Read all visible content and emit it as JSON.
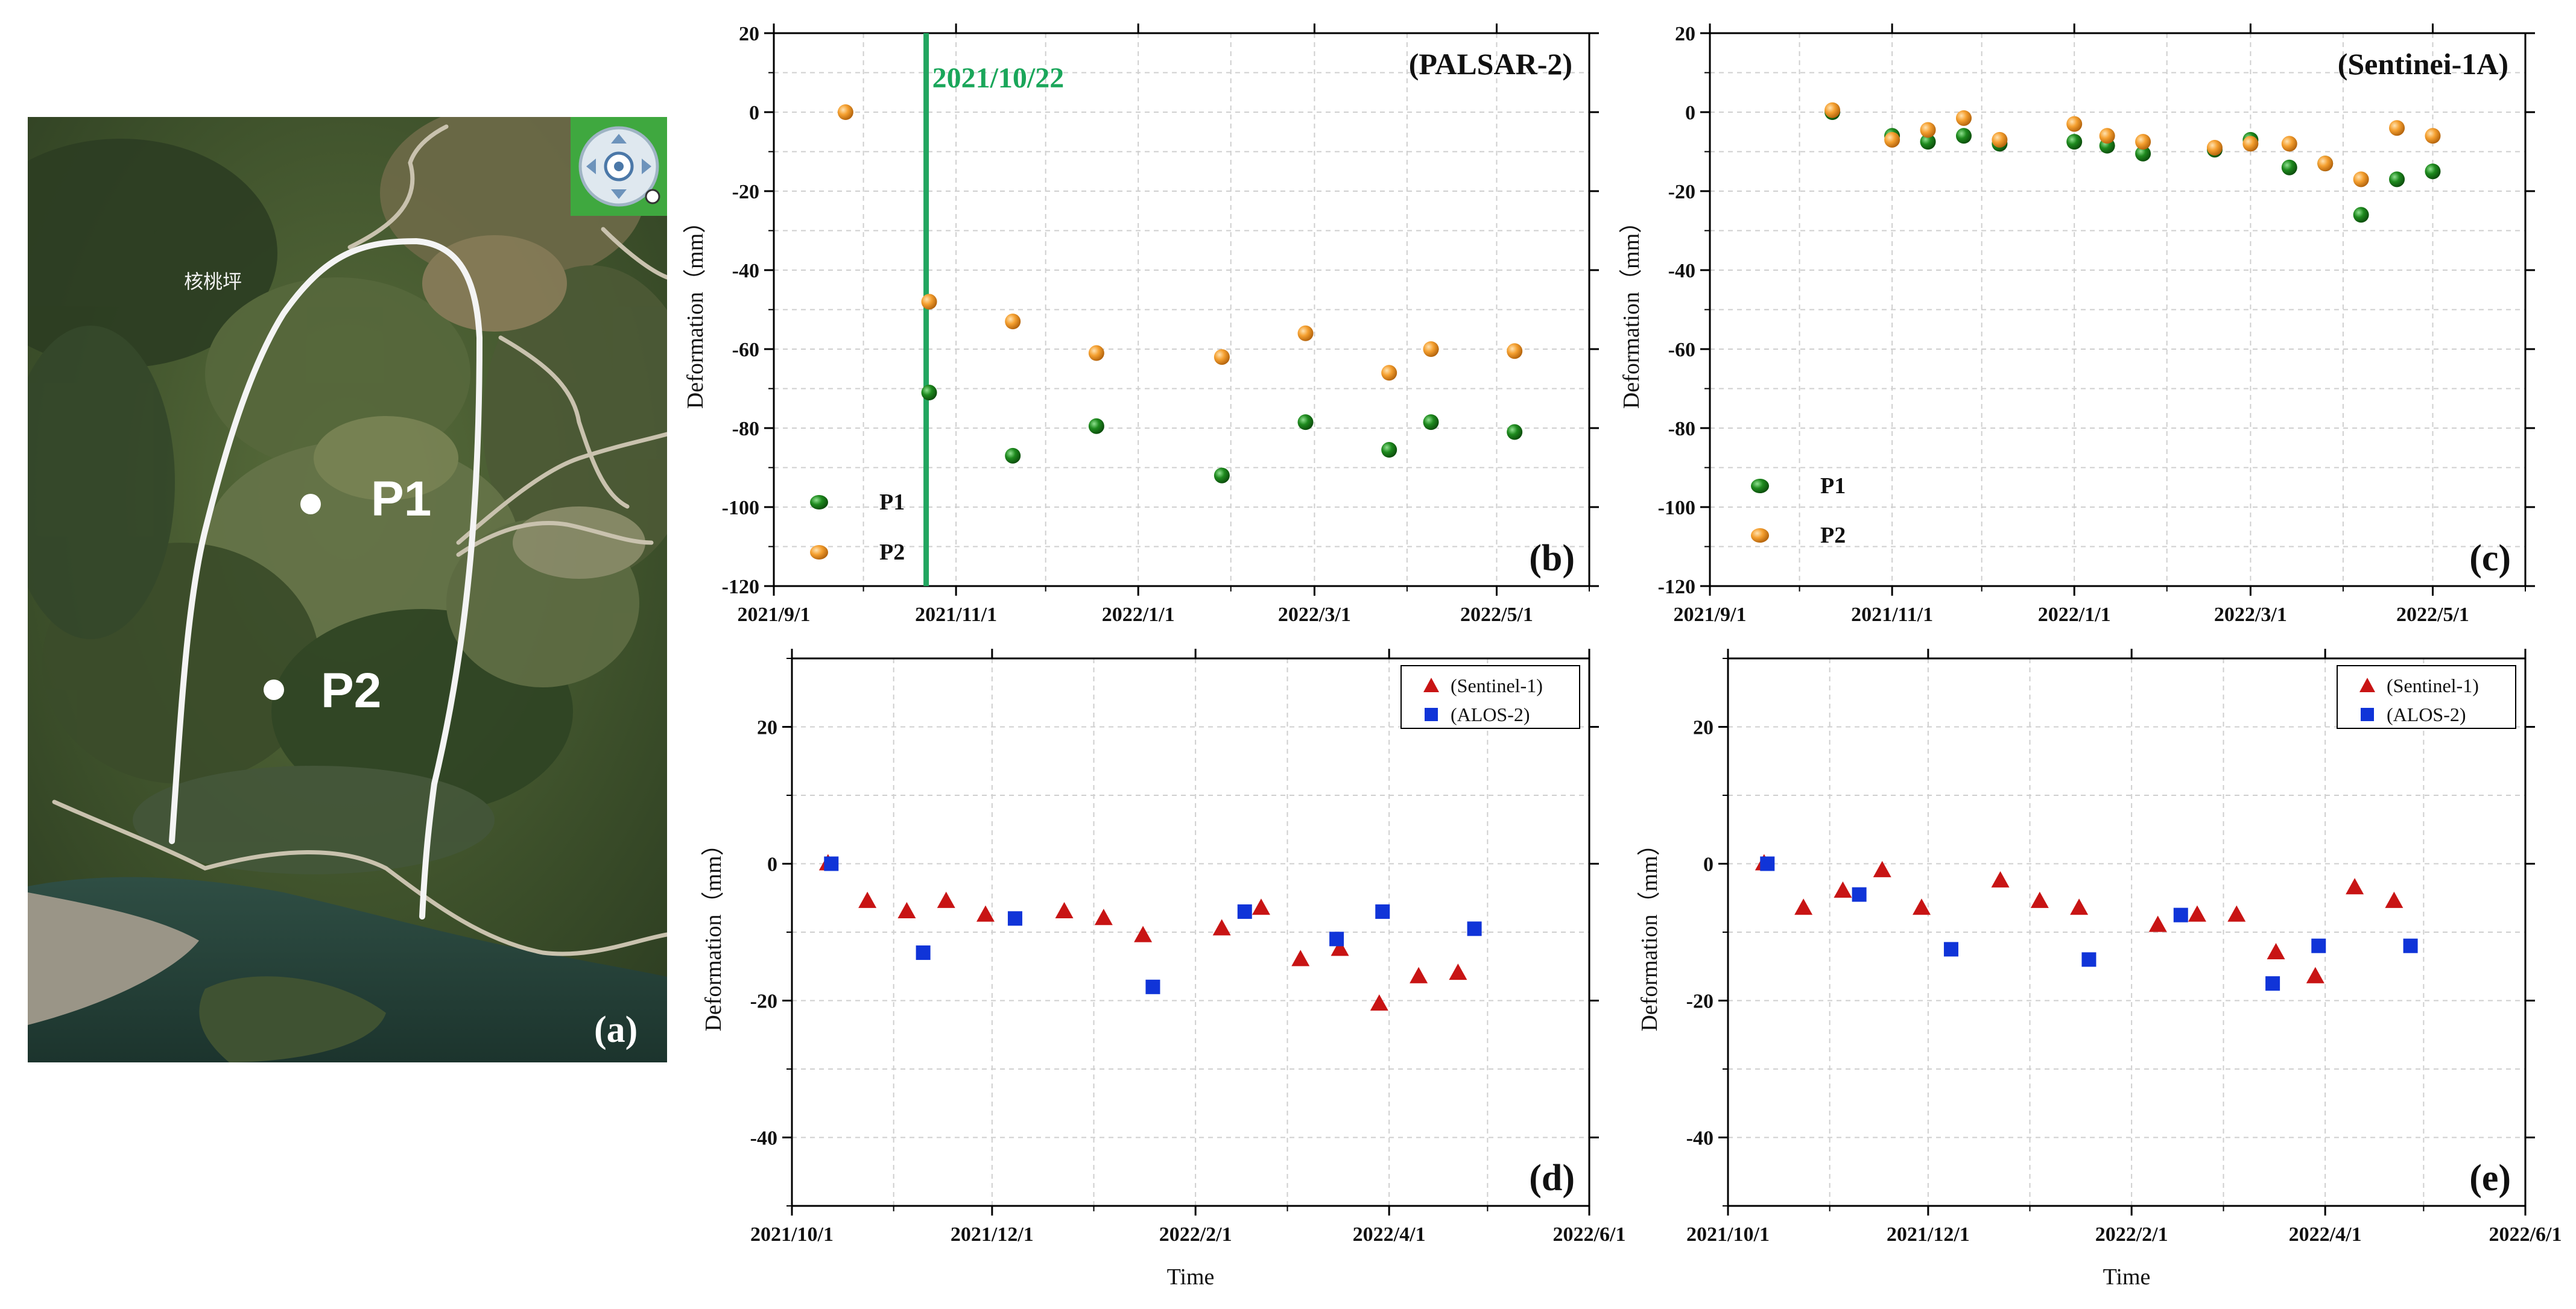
{
  "map": {
    "village_label": "核桃坪",
    "point_labels": [
      "P1",
      "P2"
    ],
    "panel_label": "(a)",
    "compass_icon": "navigation-compass-icon"
  },
  "colors": {
    "p1": "#1e7d1e",
    "p2": "#f29a2e",
    "sentinel": "#c81414",
    "alos": "#1034d8",
    "event_line": "#22a660",
    "grid": "#cfcfcf"
  },
  "chart_data": [
    {
      "id": "b",
      "type": "scatter",
      "title": "(PALSAR-2)",
      "panel_label": "(b)",
      "xlabel": "",
      "ylabel": "Deformation（mm）",
      "x_ticks": [
        "2021/9/1",
        "2021/11/1",
        "2022/1/1",
        "2022/3/1",
        "2022/5/1"
      ],
      "x_range": [
        "2021-09-01",
        "2022-06-01"
      ],
      "ylim": [
        -120,
        20
      ],
      "y_ticks": [
        20,
        0,
        -20,
        -40,
        -60,
        -80,
        -100,
        -120
      ],
      "event_line": {
        "date": "2021-10-22",
        "label": "2021/10/22"
      },
      "series": [
        {
          "name": "P1",
          "marker": "sphere",
          "color": "#1e7d1e",
          "points": [
            [
              "2021-10-23",
              -71
            ],
            [
              "2021-11-20",
              -87
            ],
            [
              "2021-12-18",
              -79.5
            ],
            [
              "2022-01-29",
              -92
            ],
            [
              "2022-02-26",
              -78.5
            ],
            [
              "2022-03-26",
              -85.5
            ],
            [
              "2022-04-09",
              -78.5
            ],
            [
              "2022-05-07",
              -81
            ]
          ]
        },
        {
          "name": "P2",
          "marker": "sphere",
          "color": "#f29a2e",
          "points": [
            [
              "2021-09-25",
              0
            ],
            [
              "2021-10-23",
              -48
            ],
            [
              "2021-11-20",
              -53
            ],
            [
              "2021-12-18",
              -61
            ],
            [
              "2022-01-29",
              -62
            ],
            [
              "2022-02-26",
              -56
            ],
            [
              "2022-03-26",
              -66
            ],
            [
              "2022-04-09",
              -60
            ],
            [
              "2022-05-07",
              -60.5
            ]
          ]
        }
      ],
      "legend": [
        {
          "name": "P1",
          "color": "#1e7d1e"
        },
        {
          "name": "P2",
          "color": "#f29a2e"
        }
      ],
      "legend_position": "bottom-left"
    },
    {
      "id": "c",
      "type": "scatter",
      "title": "(Sentinei-1A)",
      "panel_label": "(c)",
      "xlabel": "",
      "ylabel": "Deformation（mm）",
      "x_ticks": [
        "2021/9/1",
        "2021/11/1",
        "2022/1/1",
        "2022/3/1",
        "2022/5/1"
      ],
      "x_range": [
        "2021-09-01",
        "2022-06-01"
      ],
      "ylim": [
        -120,
        20
      ],
      "y_ticks": [
        20,
        0,
        -20,
        -40,
        -60,
        -80,
        -100,
        -120
      ],
      "series": [
        {
          "name": "P1",
          "marker": "sphere",
          "color": "#1e7d1e",
          "points": [
            [
              "2021-10-12",
              0
            ],
            [
              "2021-11-01",
              -6
            ],
            [
              "2021-11-13",
              -7.5
            ],
            [
              "2021-11-25",
              -6
            ],
            [
              "2021-12-07",
              -8
            ],
            [
              "2022-01-01",
              -7.5
            ],
            [
              "2022-01-12",
              -8.5
            ],
            [
              "2022-01-24",
              -10.5
            ],
            [
              "2022-02-17",
              -9.5
            ],
            [
              "2022-03-01",
              -7
            ],
            [
              "2022-03-14",
              -14
            ],
            [
              "2022-03-26",
              -13
            ],
            [
              "2022-04-07",
              -26
            ],
            [
              "2022-04-19",
              -17
            ],
            [
              "2022-05-01",
              -15
            ]
          ]
        },
        {
          "name": "P2",
          "marker": "sphere",
          "color": "#f29a2e",
          "points": [
            [
              "2021-10-12",
              0.5
            ],
            [
              "2021-11-01",
              -7
            ],
            [
              "2021-11-13",
              -4.5
            ],
            [
              "2021-11-25",
              -1.5
            ],
            [
              "2021-12-07",
              -7
            ],
            [
              "2022-01-01",
              -3
            ],
            [
              "2022-01-12",
              -6
            ],
            [
              "2022-01-24",
              -7.5
            ],
            [
              "2022-02-17",
              -9
            ],
            [
              "2022-03-01",
              -8
            ],
            [
              "2022-03-14",
              -8
            ],
            [
              "2022-03-26",
              -13
            ],
            [
              "2022-04-07",
              -17
            ],
            [
              "2022-04-19",
              -4
            ],
            [
              "2022-05-01",
              -6
            ]
          ]
        }
      ],
      "legend": [
        {
          "name": "P1",
          "color": "#1e7d1e"
        },
        {
          "name": "P2",
          "color": "#f29a2e"
        }
      ],
      "legend_position": "bottom-left"
    },
    {
      "id": "d",
      "type": "scatter",
      "title": "",
      "panel_label": "(d)",
      "xlabel": "Time",
      "ylabel": "Deformation（mm）",
      "x_ticks": [
        "2021/10/1",
        "2021/12/1",
        "2022/2/1",
        "2022/4/1",
        "2022/6/1"
      ],
      "x_range": [
        "2021-10-01",
        "2022-06-01"
      ],
      "ylim": [
        -50,
        30
      ],
      "y_ticks": [
        20,
        0,
        -20,
        -40
      ],
      "series": [
        {
          "name": "(Sentinel-1)",
          "marker": "triangle",
          "color": "#c81414",
          "points": [
            [
              "2021-10-12",
              0
            ],
            [
              "2021-10-24",
              -5.5
            ],
            [
              "2021-11-05",
              -7
            ],
            [
              "2021-11-17",
              -5.5
            ],
            [
              "2021-11-29",
              -7.5
            ],
            [
              "2021-12-23",
              -7
            ],
            [
              "2022-01-04",
              -8
            ],
            [
              "2022-01-16",
              -10.5
            ],
            [
              "2022-02-09",
              -9.5
            ],
            [
              "2022-02-21",
              -6.5
            ],
            [
              "2022-03-05",
              -14
            ],
            [
              "2022-03-17",
              -12.5
            ],
            [
              "2022-03-29",
              -20.5
            ],
            [
              "2022-04-10",
              -16.5
            ],
            [
              "2022-04-22",
              -16
            ]
          ]
        },
        {
          "name": "(ALOS-2)",
          "marker": "square",
          "color": "#1034d8",
          "points": [
            [
              "2021-10-13",
              0
            ],
            [
              "2021-11-10",
              -13
            ],
            [
              "2021-12-08",
              -8
            ],
            [
              "2022-01-19",
              -18
            ],
            [
              "2022-02-16",
              -7
            ],
            [
              "2022-03-16",
              -11
            ],
            [
              "2022-03-30",
              -7
            ],
            [
              "2022-04-27",
              -9.5
            ]
          ]
        }
      ],
      "legend": [
        {
          "name": "(Sentinel-1)",
          "color": "#c81414"
        },
        {
          "name": "(ALOS-2)",
          "color": "#1034d8"
        }
      ],
      "legend_position": "top-right"
    },
    {
      "id": "e",
      "type": "scatter",
      "title": "",
      "panel_label": "(e)",
      "xlabel": "Time",
      "ylabel": "Deformation（mm）",
      "x_ticks": [
        "2021/10/1",
        "2021/12/1",
        "2022/2/1",
        "2022/4/1",
        "2022/6/1"
      ],
      "x_range": [
        "2021-10-01",
        "2022-06-01"
      ],
      "ylim": [
        -50,
        30
      ],
      "y_ticks": [
        20,
        0,
        -20,
        -40
      ],
      "series": [
        {
          "name": "(Sentinel-1)",
          "marker": "triangle",
          "color": "#c81414",
          "points": [
            [
              "2021-10-12",
              0
            ],
            [
              "2021-10-24",
              -6.5
            ],
            [
              "2021-11-05",
              -4
            ],
            [
              "2021-11-17",
              -1
            ],
            [
              "2021-11-29",
              -6.5
            ],
            [
              "2021-12-23",
              -2.5
            ],
            [
              "2022-01-04",
              -5.5
            ],
            [
              "2022-01-16",
              -6.5
            ],
            [
              "2022-02-09",
              -9
            ],
            [
              "2022-02-21",
              -7.5
            ],
            [
              "2022-03-05",
              -7.5
            ],
            [
              "2022-03-17",
              -13
            ],
            [
              "2022-03-29",
              -16.5
            ],
            [
              "2022-04-10",
              -3.5
            ],
            [
              "2022-04-22",
              -5.5
            ]
          ]
        },
        {
          "name": "(ALOS-2)",
          "marker": "square",
          "color": "#1034d8",
          "points": [
            [
              "2021-10-13",
              0
            ],
            [
              "2021-11-10",
              -4.5
            ],
            [
              "2021-12-08",
              -12.5
            ],
            [
              "2022-01-19",
              -14
            ],
            [
              "2022-02-16",
              -7.5
            ],
            [
              "2022-03-16",
              -17.5
            ],
            [
              "2022-03-30",
              -12
            ],
            [
              "2022-04-27",
              -12
            ]
          ]
        }
      ],
      "legend": [
        {
          "name": "(Sentinel-1)",
          "color": "#c81414"
        },
        {
          "name": "(ALOS-2)",
          "color": "#1034d8"
        }
      ],
      "legend_position": "top-right"
    }
  ]
}
